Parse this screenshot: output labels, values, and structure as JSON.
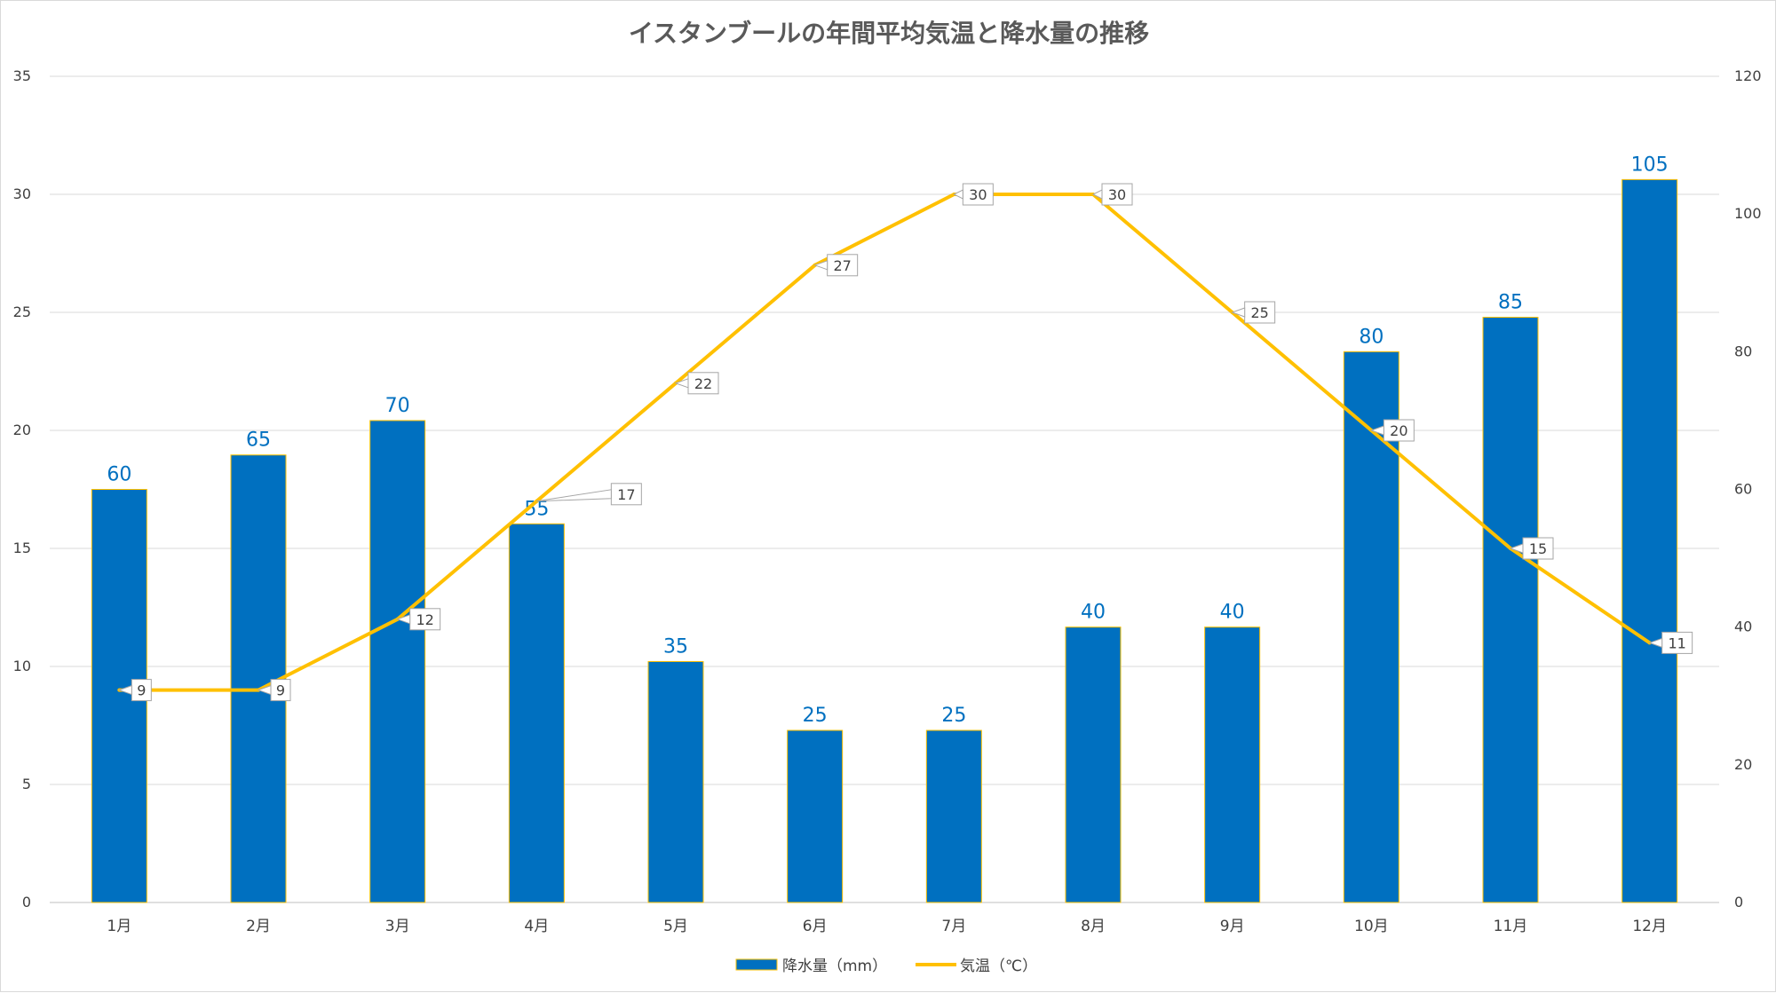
{
  "chart_data": {
    "type": "bar",
    "title": "イスタンブールの年間平均気温と降水量の推移",
    "categories": [
      "1月",
      "2月",
      "3月",
      "4月",
      "5月",
      "6月",
      "7月",
      "8月",
      "9月",
      "10月",
      "11月",
      "12月"
    ],
    "series": [
      {
        "name": "降水量（mm）",
        "type": "bar",
        "axis": "right",
        "color": "#0070c0",
        "edge_color": "#ffc000",
        "values": [
          60,
          65,
          70,
          55,
          35,
          25,
          25,
          40,
          40,
          80,
          85,
          105
        ]
      },
      {
        "name": "気温（℃）",
        "type": "line",
        "axis": "left",
        "color": "#ffc000",
        "values": [
          9,
          9,
          12,
          17,
          22,
          27,
          30,
          30,
          25,
          20,
          15,
          11
        ]
      }
    ],
    "y_left": {
      "min": 0,
      "max": 35,
      "step": 5,
      "ticks": [
        "0",
        "5",
        "10",
        "15",
        "20",
        "25",
        "30",
        "35"
      ]
    },
    "y_right": {
      "min": 0,
      "max": 120,
      "step": 20,
      "ticks": [
        "0",
        "20",
        "40",
        "60",
        "80",
        "100",
        "120"
      ]
    },
    "grid": true,
    "legend_position": "bottom-center"
  }
}
